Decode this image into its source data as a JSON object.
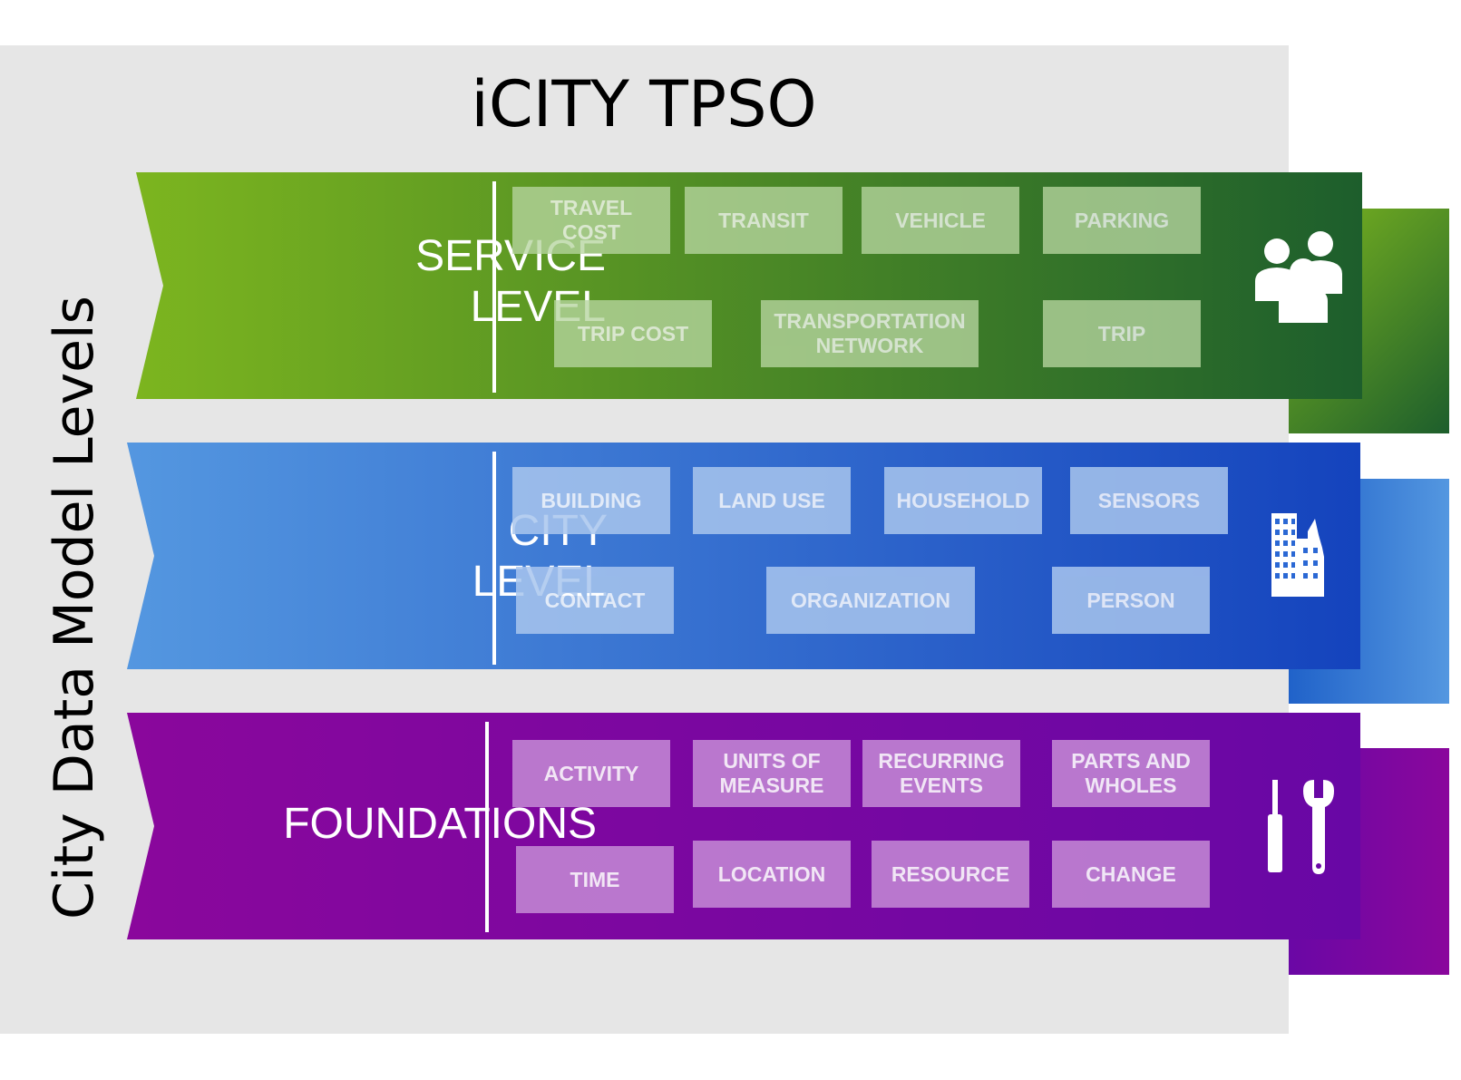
{
  "title": "iCITY TPSO",
  "side_label": "City Data Model Levels",
  "levels": {
    "service": {
      "label_line1": "SERVICE",
      "label_line2": "LEVEL",
      "icon": "people-group-icon",
      "colors": {
        "start": "#7cb51f",
        "end": "#1d5e2c",
        "box": "#b7d6a0"
      },
      "items": [
        "TRAVEL\nCOST",
        "TRANSIT",
        "VEHICLE",
        "PARKING",
        "TRIP COST",
        "TRANSPORTATION\nNETWORK",
        "TRIP"
      ]
    },
    "city": {
      "label_line1": "CITY",
      "label_line2": "LEVEL",
      "icon": "city-buildings-icon",
      "colors": {
        "start": "#5497e0",
        "end": "#1443bd",
        "box": "#a9c6ee"
      },
      "items": [
        "BUILDING",
        "LAND USE",
        "HOUSEHOLD",
        "SENSORS",
        "CONTACT",
        "ORGANIZATION",
        "PERSON"
      ]
    },
    "foundations": {
      "label": "FOUNDATIONS",
      "icon": "tools-icon",
      "colors": {
        "start": "#8a079c",
        "end": "#6807a5",
        "box": "#c184d3"
      },
      "items": [
        "ACTIVITY",
        "UNITS OF\nMEASURE",
        "RECURRING\nEVENTS",
        "PARTS AND\nWHOLES",
        "TIME",
        "LOCATION",
        "RESOURCE",
        "CHANGE"
      ]
    }
  }
}
